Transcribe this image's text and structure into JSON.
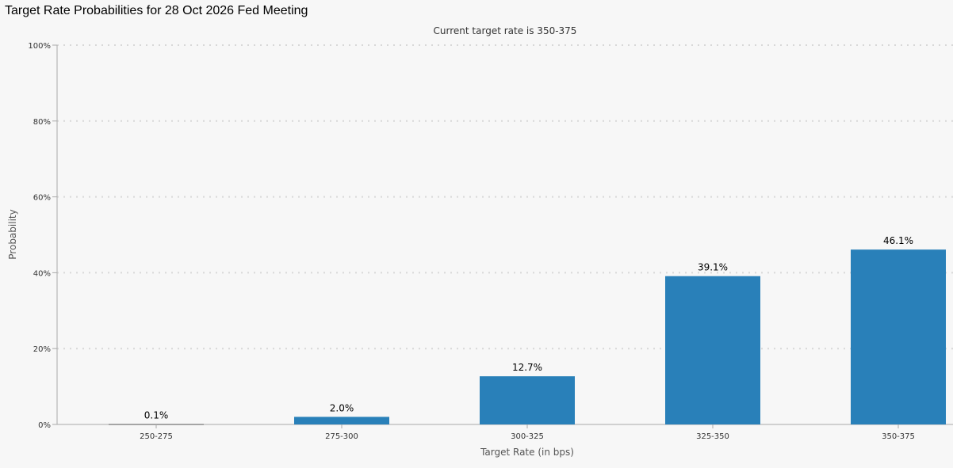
{
  "title": "Target Rate Probabilities for 28 Oct 2026 Fed Meeting",
  "chart_data": {
    "type": "bar",
    "subtitle": "Current target rate is 350-375",
    "xlabel": "Target Rate (in bps)",
    "ylabel": "Probability",
    "categories": [
      "250-275",
      "275-300",
      "300-325",
      "325-350",
      "350-375"
    ],
    "values": [
      0.1,
      2.0,
      12.7,
      39.1,
      46.1
    ],
    "data_labels": [
      "0.1%",
      "2.0%",
      "12.7%",
      "39.1%",
      "46.1%"
    ],
    "yticks": [
      "0%",
      "20%",
      "40%",
      "60%",
      "80%",
      "100%"
    ],
    "ylim": [
      0,
      100
    ],
    "grid": true,
    "bar_color": "#2980b9"
  }
}
